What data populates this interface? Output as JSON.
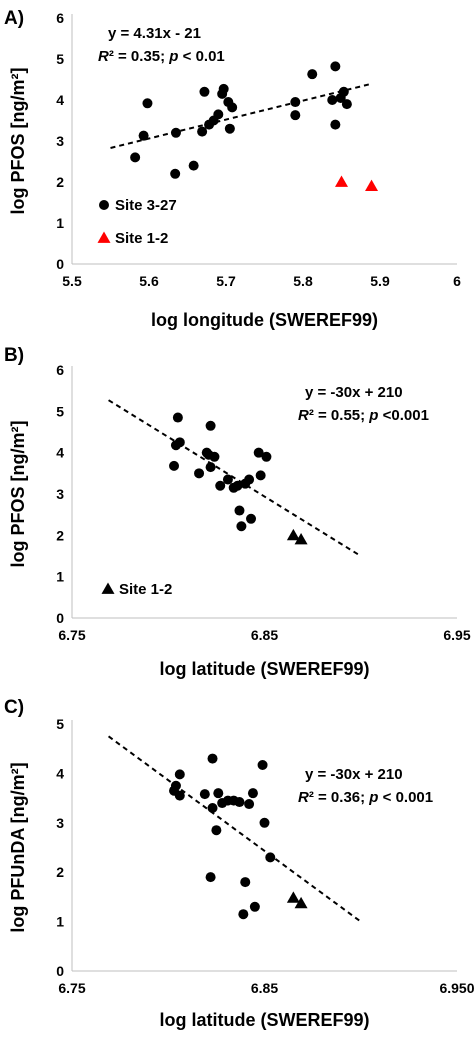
{
  "chart_data": [
    {
      "id": "A",
      "type": "scatter",
      "panel_label": "A)",
      "xlabel": "log longitude (SWEREF99)",
      "ylabel": "log PFOS [ng/m²]",
      "xlim": [
        5.5,
        6.0
      ],
      "ylim": [
        0,
        6
      ],
      "xticks": [
        "5.5",
        "5.6",
        "5.7",
        "5.8",
        "5.9",
        "6"
      ],
      "yticks": [
        "0",
        "1",
        "2",
        "3",
        "4",
        "5",
        "6"
      ],
      "equation": "y = 4.31x - 21",
      "r2_text": "R² = 0.35; p < 0.01",
      "trendline": {
        "x": [
          5.55,
          5.89
        ],
        "y": [
          2.83,
          4.4
        ]
      },
      "series": [
        {
          "name": "Site 3-27",
          "marker": "circle",
          "color": "#000000",
          "points": [
            [
              5.582,
              2.6
            ],
            [
              5.593,
              3.13
            ],
            [
              5.598,
              3.92
            ],
            [
              5.634,
              2.2
            ],
            [
              5.635,
              3.2
            ],
            [
              5.658,
              2.4
            ],
            [
              5.669,
              3.23
            ],
            [
              5.672,
              4.2
            ],
            [
              5.678,
              3.4
            ],
            [
              5.684,
              3.5
            ],
            [
              5.69,
              3.65
            ],
            [
              5.695,
              4.15
            ],
            [
              5.697,
              4.27
            ],
            [
              5.705,
              3.3
            ],
            [
              5.703,
              3.95
            ],
            [
              5.708,
              3.82
            ],
            [
              5.79,
              3.95
            ],
            [
              5.79,
              3.63
            ],
            [
              5.812,
              4.63
            ],
            [
              5.838,
              4.0
            ],
            [
              5.842,
              4.82
            ],
            [
              5.842,
              3.4
            ],
            [
              5.849,
              4.05
            ],
            [
              5.853,
              4.2
            ],
            [
              5.857,
              3.9
            ]
          ]
        },
        {
          "name": "Site 1-2",
          "marker": "triangle",
          "color": "#ff0000",
          "points": [
            [
              5.85,
              2.0
            ],
            [
              5.889,
              1.9
            ]
          ]
        }
      ]
    },
    {
      "id": "B",
      "type": "scatter",
      "panel_label": "B)",
      "xlabel": "log latitude (SWEREF99)",
      "ylabel": "log  PFOS [ng/m²]",
      "xlim": [
        6.75,
        6.95
      ],
      "ylim": [
        0,
        6
      ],
      "xticks": [
        "6.75",
        "6.85",
        "6.95"
      ],
      "yticks": [
        "0",
        "1",
        "2",
        "3",
        "4",
        "5",
        "6"
      ],
      "equation": "y = -30x + 210",
      "r2_text": "R² = 0.55; p <0.001",
      "trendline": {
        "x": [
          6.769,
          6.9
        ],
        "y": [
          5.27,
          1.5
        ]
      },
      "series": [
        {
          "name": "",
          "marker": "circle",
          "color": "#000000",
          "points": [
            [
              6.803,
              3.68
            ],
            [
              6.804,
              4.18
            ],
            [
              6.805,
              4.85
            ],
            [
              6.806,
              4.25
            ],
            [
              6.816,
              3.5
            ],
            [
              6.82,
              4.0
            ],
            [
              6.821,
              3.95
            ],
            [
              6.822,
              3.65
            ],
            [
              6.822,
              4.65
            ],
            [
              6.824,
              3.9
            ],
            [
              6.827,
              3.2
            ],
            [
              6.831,
              3.35
            ],
            [
              6.834,
              3.15
            ],
            [
              6.836,
              3.2
            ],
            [
              6.837,
              2.6
            ],
            [
              6.838,
              2.22
            ],
            [
              6.84,
              3.25
            ],
            [
              6.842,
              3.35
            ],
            [
              6.843,
              2.4
            ],
            [
              6.847,
              4.0
            ],
            [
              6.848,
              3.45
            ],
            [
              6.851,
              3.9
            ]
          ]
        },
        {
          "name": "Site 1-2",
          "marker": "triangle",
          "color": "#000000",
          "points": [
            [
              6.865,
              2.0
            ],
            [
              6.869,
              1.9
            ]
          ]
        }
      ]
    },
    {
      "id": "C",
      "type": "scatter",
      "panel_label": "C)",
      "xlabel": "log latitude (SWEREF99)",
      "ylabel": "log PFUnDA [ng/m²]",
      "xlim": [
        6.75,
        6.95
      ],
      "ylim": [
        0,
        5
      ],
      "xticks": [
        "6.75",
        "6.85",
        "6.950"
      ],
      "yticks": [
        "0",
        "1",
        "2",
        "3",
        "4",
        "5"
      ],
      "equation": "y = -30x + 210",
      "r2_text": "R² = 0.36; p < 0.001",
      "trendline": {
        "x": [
          6.769,
          6.9
        ],
        "y": [
          4.75,
          1.0
        ]
      },
      "series": [
        {
          "name": "",
          "marker": "circle",
          "color": "#000000",
          "points": [
            [
              6.803,
              3.65
            ],
            [
              6.804,
              3.75
            ],
            [
              6.806,
              3.55
            ],
            [
              6.806,
              3.98
            ],
            [
              6.819,
              3.58
            ],
            [
              6.822,
              1.9
            ],
            [
              6.823,
              3.3
            ],
            [
              6.823,
              4.3
            ],
            [
              6.825,
              2.85
            ],
            [
              6.826,
              3.6
            ],
            [
              6.828,
              3.4
            ],
            [
              6.831,
              3.45
            ],
            [
              6.834,
              3.45
            ],
            [
              6.837,
              3.42
            ],
            [
              6.839,
              1.15
            ],
            [
              6.84,
              1.8
            ],
            [
              6.842,
              3.38
            ],
            [
              6.844,
              3.6
            ],
            [
              6.845,
              1.3
            ],
            [
              6.849,
              4.17
            ],
            [
              6.85,
              3.0
            ],
            [
              6.853,
              2.3
            ]
          ]
        },
        {
          "name": "",
          "marker": "triangle",
          "color": "#000000",
          "points": [
            [
              6.865,
              1.48
            ],
            [
              6.869,
              1.37
            ]
          ]
        }
      ]
    }
  ]
}
